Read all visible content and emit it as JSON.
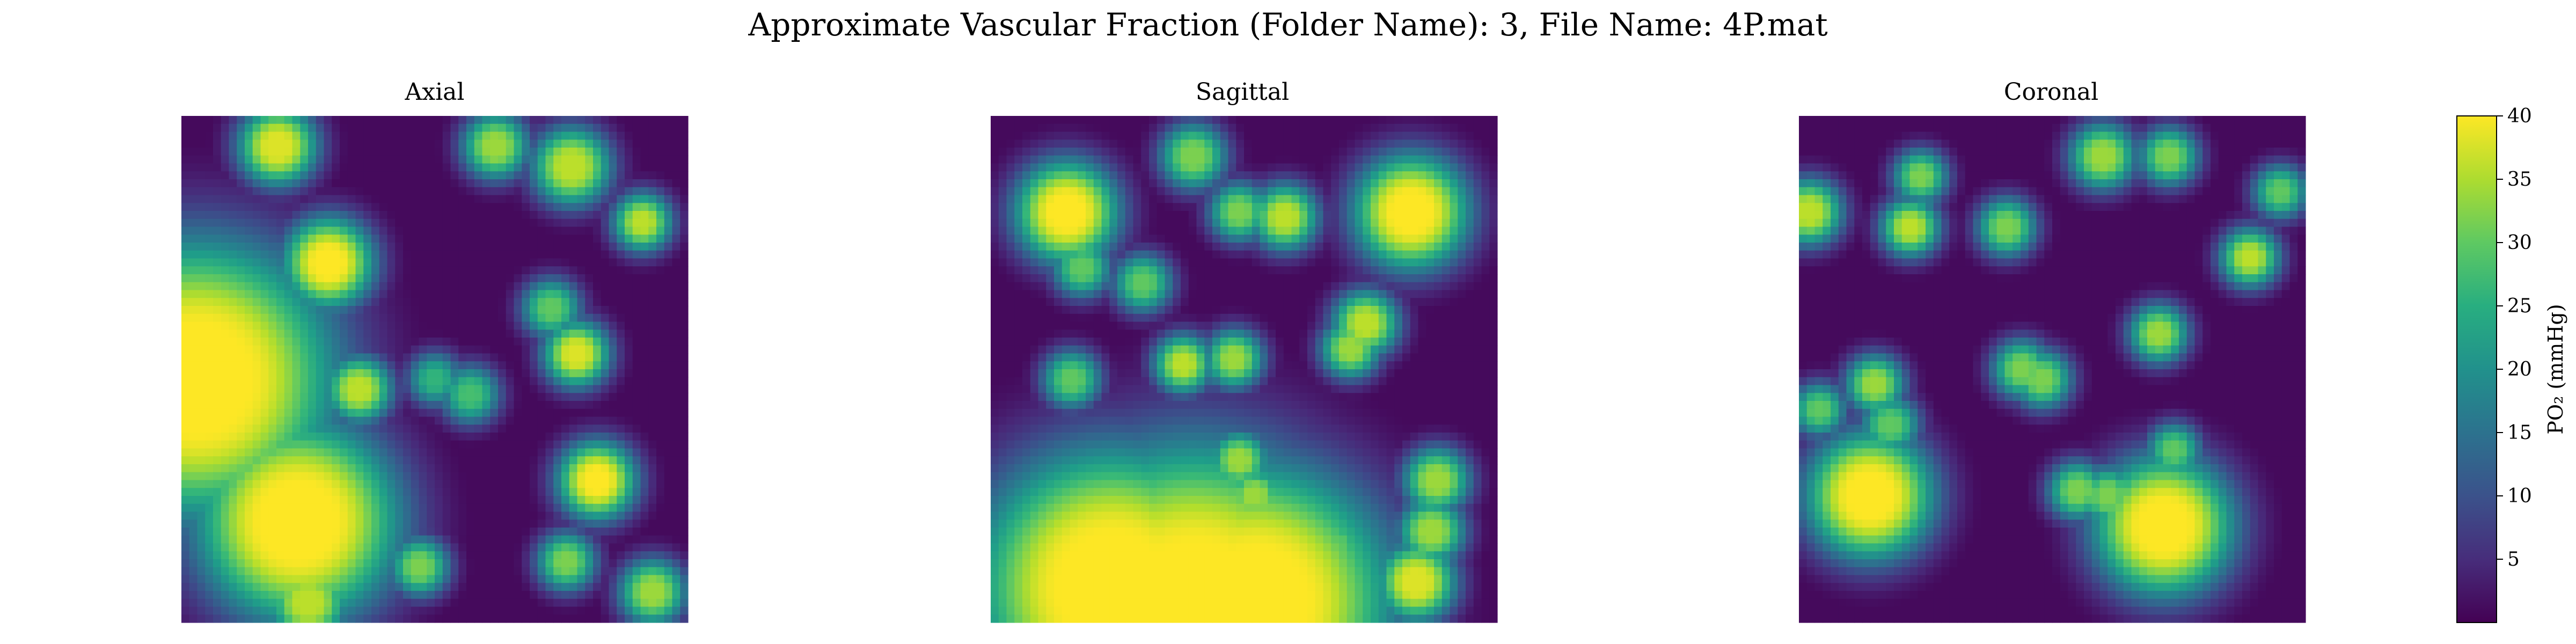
{
  "figure": {
    "suptitle": "Approximate Vascular Fraction (Folder Name): 3, File Name: 4P.mat"
  },
  "chart_data": [
    {
      "type": "heatmap",
      "title": "Axial",
      "colormap": "viridis",
      "vmin": 0,
      "vmax": 40,
      "hotspots": [
        {
          "x": 0.03,
          "y": 0.52,
          "r": 0.1,
          "v": 40
        },
        {
          "x": 0.23,
          "y": 0.8,
          "r": 0.07,
          "v": 40
        },
        {
          "x": 0.29,
          "y": 0.29,
          "r": 0.025,
          "v": 40
        },
        {
          "x": 0.19,
          "y": 0.06,
          "r": 0.02,
          "v": 38
        },
        {
          "x": 0.77,
          "y": 0.1,
          "r": 0.02,
          "v": 36
        },
        {
          "x": 0.62,
          "y": 0.06,
          "r": 0.015,
          "v": 34
        },
        {
          "x": 0.91,
          "y": 0.21,
          "r": 0.012,
          "v": 36
        },
        {
          "x": 0.78,
          "y": 0.47,
          "r": 0.015,
          "v": 38
        },
        {
          "x": 0.73,
          "y": 0.38,
          "r": 0.012,
          "v": 30
        },
        {
          "x": 0.82,
          "y": 0.72,
          "r": 0.02,
          "v": 40
        },
        {
          "x": 0.35,
          "y": 0.54,
          "r": 0.015,
          "v": 36
        },
        {
          "x": 0.25,
          "y": 0.96,
          "r": 0.02,
          "v": 36
        },
        {
          "x": 0.47,
          "y": 0.89,
          "r": 0.012,
          "v": 32
        },
        {
          "x": 0.76,
          "y": 0.88,
          "r": 0.012,
          "v": 32
        },
        {
          "x": 0.93,
          "y": 0.94,
          "r": 0.015,
          "v": 34
        },
        {
          "x": 0.57,
          "y": 0.55,
          "r": 0.012,
          "v": 28
        },
        {
          "x": 0.5,
          "y": 0.52,
          "r": 0.01,
          "v": 26
        },
        {
          "x": 0.33,
          "y": 0.84,
          "r": 0.012,
          "v": 30
        }
      ]
    },
    {
      "type": "heatmap",
      "title": "Sagittal",
      "colormap": "viridis",
      "vmin": 0,
      "vmax": 40,
      "hotspots": [
        {
          "x": 0.24,
          "y": 0.93,
          "r": 0.1,
          "v": 40
        },
        {
          "x": 0.4,
          "y": 0.97,
          "r": 0.12,
          "v": 40
        },
        {
          "x": 0.52,
          "y": 0.96,
          "r": 0.1,
          "v": 40
        },
        {
          "x": 0.15,
          "y": 0.19,
          "r": 0.03,
          "v": 40
        },
        {
          "x": 0.83,
          "y": 0.19,
          "r": 0.035,
          "v": 40
        },
        {
          "x": 0.4,
          "y": 0.08,
          "r": 0.015,
          "v": 32
        },
        {
          "x": 0.58,
          "y": 0.2,
          "r": 0.015,
          "v": 36
        },
        {
          "x": 0.49,
          "y": 0.19,
          "r": 0.012,
          "v": 32
        },
        {
          "x": 0.18,
          "y": 0.3,
          "r": 0.012,
          "v": 30
        },
        {
          "x": 0.3,
          "y": 0.33,
          "r": 0.012,
          "v": 30
        },
        {
          "x": 0.74,
          "y": 0.41,
          "r": 0.015,
          "v": 36
        },
        {
          "x": 0.71,
          "y": 0.46,
          "r": 0.012,
          "v": 34
        },
        {
          "x": 0.38,
          "y": 0.49,
          "r": 0.012,
          "v": 36
        },
        {
          "x": 0.48,
          "y": 0.48,
          "r": 0.012,
          "v": 34
        },
        {
          "x": 0.16,
          "y": 0.52,
          "r": 0.012,
          "v": 30
        },
        {
          "x": 0.49,
          "y": 0.68,
          "r": 0.012,
          "v": 34
        },
        {
          "x": 0.52,
          "y": 0.75,
          "r": 0.012,
          "v": 34
        },
        {
          "x": 0.88,
          "y": 0.72,
          "r": 0.015,
          "v": 34
        },
        {
          "x": 0.87,
          "y": 0.82,
          "r": 0.015,
          "v": 34
        },
        {
          "x": 0.84,
          "y": 0.92,
          "r": 0.02,
          "v": 38
        },
        {
          "x": 0.68,
          "y": 0.85,
          "r": 0.012,
          "v": 30
        }
      ]
    },
    {
      "type": "heatmap",
      "title": "Coronal",
      "colormap": "viridis",
      "vmin": 0,
      "vmax": 40,
      "hotspots": [
        {
          "x": 0.14,
          "y": 0.75,
          "r": 0.04,
          "v": 40
        },
        {
          "x": 0.72,
          "y": 0.81,
          "r": 0.045,
          "v": 40
        },
        {
          "x": 0.02,
          "y": 0.19,
          "r": 0.015,
          "v": 36
        },
        {
          "x": 0.22,
          "y": 0.22,
          "r": 0.012,
          "v": 36
        },
        {
          "x": 0.24,
          "y": 0.12,
          "r": 0.01,
          "v": 32
        },
        {
          "x": 0.41,
          "y": 0.22,
          "r": 0.012,
          "v": 32
        },
        {
          "x": 0.6,
          "y": 0.08,
          "r": 0.015,
          "v": 34
        },
        {
          "x": 0.73,
          "y": 0.08,
          "r": 0.012,
          "v": 32
        },
        {
          "x": 0.89,
          "y": 0.28,
          "r": 0.012,
          "v": 36
        },
        {
          "x": 0.95,
          "y": 0.15,
          "r": 0.01,
          "v": 30
        },
        {
          "x": 0.71,
          "y": 0.43,
          "r": 0.012,
          "v": 34
        },
        {
          "x": 0.44,
          "y": 0.5,
          "r": 0.012,
          "v": 32
        },
        {
          "x": 0.48,
          "y": 0.52,
          "r": 0.012,
          "v": 32
        },
        {
          "x": 0.15,
          "y": 0.53,
          "r": 0.012,
          "v": 34
        },
        {
          "x": 0.04,
          "y": 0.58,
          "r": 0.01,
          "v": 30
        },
        {
          "x": 0.18,
          "y": 0.61,
          "r": 0.012,
          "v": 30
        },
        {
          "x": 0.55,
          "y": 0.74,
          "r": 0.012,
          "v": 32
        },
        {
          "x": 0.61,
          "y": 0.75,
          "r": 0.012,
          "v": 32
        },
        {
          "x": 0.74,
          "y": 0.66,
          "r": 0.01,
          "v": 30
        }
      ]
    }
  ],
  "colorbar": {
    "label": "PO₂ (mmHg)",
    "ticks": [
      "5",
      "10",
      "15",
      "20",
      "25",
      "30",
      "35",
      "40"
    ],
    "tick_values": [
      5,
      10,
      15,
      20,
      25,
      30,
      35,
      40
    ],
    "vmin": 0,
    "vmax": 40
  }
}
